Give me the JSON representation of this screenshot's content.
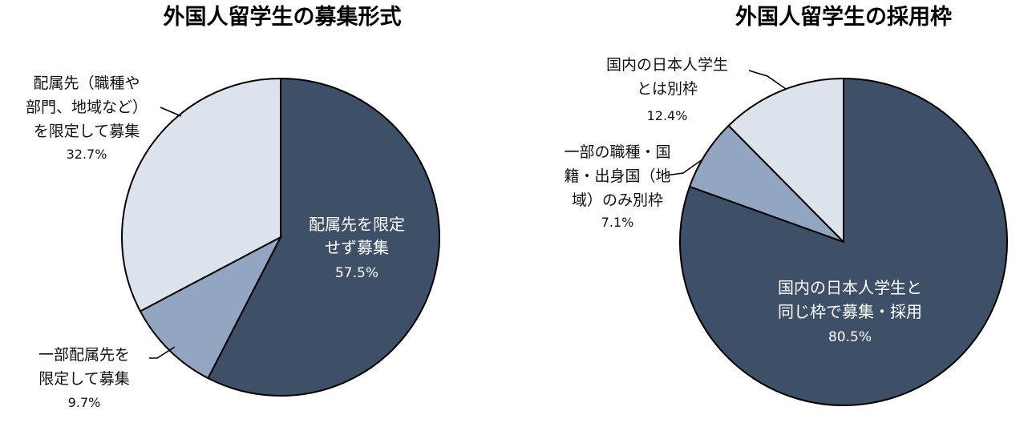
{
  "chart_data": [
    {
      "type": "pie",
      "title": "外国人留学生の募集形式",
      "slices": [
        {
          "label_lines": [
            "配属先を限定",
            "せず募集"
          ],
          "value": 57.5,
          "value_text": "57.5%",
          "color": "#3d5068"
        },
        {
          "label_lines": [
            "一部配属先を",
            "限定して募集"
          ],
          "value": 9.7,
          "value_text": "9.7%",
          "color": "#92a6c2"
        },
        {
          "label_lines": [
            "配属先（職種や",
            "部門、地域など）",
            "を限定して募集"
          ],
          "value": 32.7,
          "value_text": "32.7%",
          "color": "#dde3ed"
        }
      ]
    },
    {
      "type": "pie",
      "title": "外国人留学生の採用枠",
      "slices": [
        {
          "label_lines": [
            "国内の日本人学生と",
            "同じ枠で募集・採用"
          ],
          "value": 80.5,
          "value_text": "80.5%",
          "color": "#3d5068"
        },
        {
          "label_lines": [
            "一部の職種・国",
            "籍・出身国（地",
            "域）のみ別枠"
          ],
          "value": 7.1,
          "value_text": "7.1%",
          "color": "#92a6c2"
        },
        {
          "label_lines": [
            "国内の日本人学生",
            "とは別枠"
          ],
          "value": 12.4,
          "value_text": "12.4%",
          "color": "#dde3ed"
        }
      ]
    }
  ]
}
